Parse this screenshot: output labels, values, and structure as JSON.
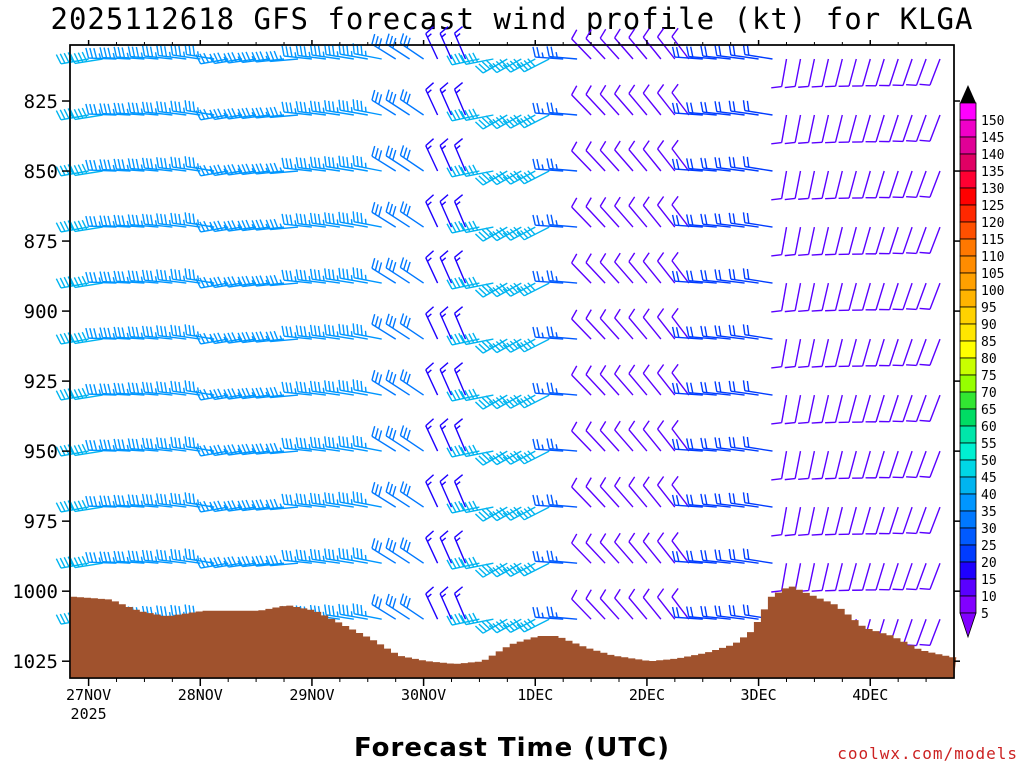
{
  "chart_data": {
    "type": "wind_barb_time_height",
    "title": "2025112618 GFS forecast wind profile (kt) for KLGA",
    "xlabel": "Forecast Time (UTC)",
    "ylabel": "",
    "y_ticks": [
      "825",
      "850",
      "875",
      "900",
      "925",
      "950",
      "975",
      "1000",
      "1025"
    ],
    "y_values": [
      825,
      850,
      875,
      900,
      925,
      950,
      975,
      1000,
      1025
    ],
    "x_ticks": [
      "27NOV",
      "28NOV",
      "29NOV",
      "30NOV",
      "1DEC",
      "2DEC",
      "3DEC",
      "4DEC"
    ],
    "x_year": "2025",
    "ylim_hpa": [
      805,
      1031
    ],
    "xlim_hours_from_start": [
      -4,
      186
    ],
    "pressure_levels": [
      810,
      830,
      850,
      870,
      890,
      910,
      930,
      950,
      970,
      990,
      1010
    ],
    "legend_speeds": [
      "150",
      "145",
      "140",
      "135",
      "130",
      "125",
      "120",
      "115",
      "110",
      "105",
      "100",
      "95",
      "90",
      "85",
      "80",
      "75",
      "70",
      "65",
      "60",
      "55",
      "50",
      "45",
      "40",
      "35",
      "30",
      "25",
      "20",
      "15",
      "10",
      "5"
    ],
    "legend_colors": [
      "#ff00ff",
      "#f000c8",
      "#e00096",
      "#e00064",
      "#ff0032",
      "#ff0000",
      "#ff2800",
      "#ff5000",
      "#ff7800",
      "#ff8c00",
      "#ffa000",
      "#ffb400",
      "#ffd200",
      "#ffe600",
      "#ffff00",
      "#c8ff00",
      "#96ff00",
      "#32e632",
      "#00dc64",
      "#00e6aa",
      "#00f0d2",
      "#00d7e6",
      "#00b4f0",
      "#0096ff",
      "#0078ff",
      "#005aff",
      "#003cff",
      "#1e00ff",
      "#5a00ff",
      "#8200ff"
    ],
    "speed_segments": [
      {
        "t_start": 0,
        "t_end": 4,
        "speed_kt": 42,
        "dir_deg": 260
      },
      {
        "t_start": 4,
        "t_end": 48,
        "speed_kt": 35,
        "dir_deg": 270
      },
      {
        "t_start": 48,
        "t_end": 66,
        "speed_kt": 33,
        "dir_deg": 280
      },
      {
        "t_start": 66,
        "t_end": 75,
        "speed_kt": 28,
        "dir_deg": 300
      },
      {
        "t_start": 75,
        "t_end": 84,
        "speed_kt": 16,
        "dir_deg": 330
      },
      {
        "t_start": 84,
        "t_end": 100,
        "speed_kt": 38,
        "dir_deg": 250
      },
      {
        "t_start": 100,
        "t_end": 108,
        "speed_kt": 25,
        "dir_deg": 280
      },
      {
        "t_start": 108,
        "t_end": 132,
        "speed_kt": 10,
        "dir_deg": 320
      },
      {
        "t_start": 132,
        "t_end": 150,
        "speed_kt": 22,
        "dir_deg": 270
      },
      {
        "t_start": 150,
        "t_end": 186,
        "speed_kt": 8,
        "dir_deg": 200
      }
    ],
    "surface_pressure": [
      [
        -4,
        1002
      ],
      [
        4,
        1003
      ],
      [
        10,
        1007
      ],
      [
        16,
        1009
      ],
      [
        24,
        1007
      ],
      [
        36,
        1007
      ],
      [
        42,
        1005
      ],
      [
        48,
        1007
      ],
      [
        54,
        1012
      ],
      [
        60,
        1017
      ],
      [
        66,
        1023
      ],
      [
        72,
        1025
      ],
      [
        78,
        1026
      ],
      [
        84,
        1025
      ],
      [
        90,
        1019
      ],
      [
        96,
        1016
      ],
      [
        100,
        1016
      ],
      [
        106,
        1020
      ],
      [
        112,
        1023
      ],
      [
        120,
        1025
      ],
      [
        126,
        1024
      ],
      [
        132,
        1022
      ],
      [
        138,
        1019
      ],
      [
        142,
        1014
      ],
      [
        146,
        1002
      ],
      [
        150,
        998
      ],
      [
        154,
        1001
      ],
      [
        160,
        1005
      ],
      [
        166,
        1013
      ],
      [
        172,
        1016
      ],
      [
        178,
        1021
      ],
      [
        186,
        1024
      ]
    ],
    "surface_color": "#a0522d"
  },
  "credit": "coolwx.com/models"
}
